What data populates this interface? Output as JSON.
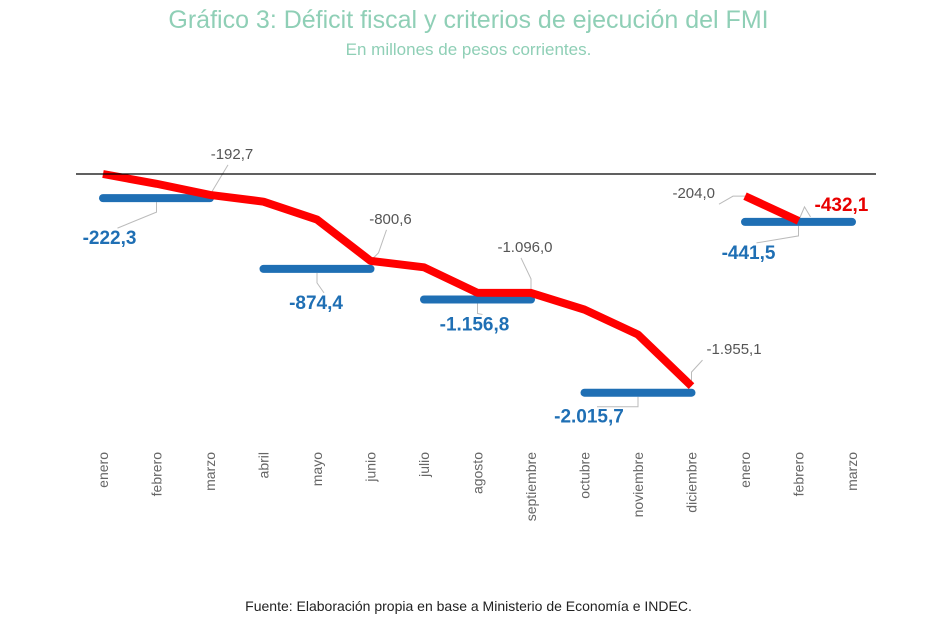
{
  "title": "Gráfico 3: Déficit fiscal y criterios de ejecución del FMI",
  "subtitle": "En millones de pesos corrientes.",
  "source": "Fuente: Elaboración propia en base a Ministerio de Economía e INDEC.",
  "colors": {
    "actual": "#ff0000",
    "target": "#1f6fb4",
    "title": "#8fcfb6"
  },
  "chart_data": {
    "type": "line",
    "categories": [
      "enero",
      "febrero",
      "marzo",
      "abril",
      "mayo",
      "junio",
      "julio",
      "agosto",
      "septiembre",
      "octubre",
      "noviembre",
      "diciembre",
      "enero",
      "febrero",
      "marzo"
    ],
    "ylim": [
      -2250,
      0
    ],
    "series": [
      {
        "kind": "actual-line",
        "segments": [
          {
            "start_index": 0,
            "values": [
              0,
              -90,
              -192.7,
              -255,
              -420,
              -800.6,
              -860,
              -1095,
              -1096.0,
              -1250,
              -1480,
              -1955.1
            ]
          },
          {
            "start_index": 12,
            "values": [
              -204.0,
              -432.1
            ]
          }
        ]
      },
      {
        "kind": "targets",
        "targets": [
          {
            "from": 0,
            "to": 2,
            "value": -222.3
          },
          {
            "from": 3,
            "to": 5,
            "value": -874.4
          },
          {
            "from": 6,
            "to": 8,
            "value": -1156.8
          },
          {
            "from": 9,
            "to": 11,
            "value": -2015.7
          },
          {
            "from": 12,
            "to": 14,
            "value": -441.5
          }
        ]
      }
    ],
    "data_labels": {
      "targets": [
        "-222,3",
        "-874,4",
        "-1.156,8",
        "-2.015,7",
        "-441,5"
      ],
      "actual": [
        {
          "index": 2,
          "text": "-192,7"
        },
        {
          "index": 5,
          "text": "-800,6"
        },
        {
          "index": 8,
          "text": "-1.096,0"
        },
        {
          "index": 11,
          "text": "-1.955,1"
        },
        {
          "index": 12,
          "text": "-204,0"
        },
        {
          "index": 13,
          "text": "-432,1"
        }
      ]
    }
  }
}
